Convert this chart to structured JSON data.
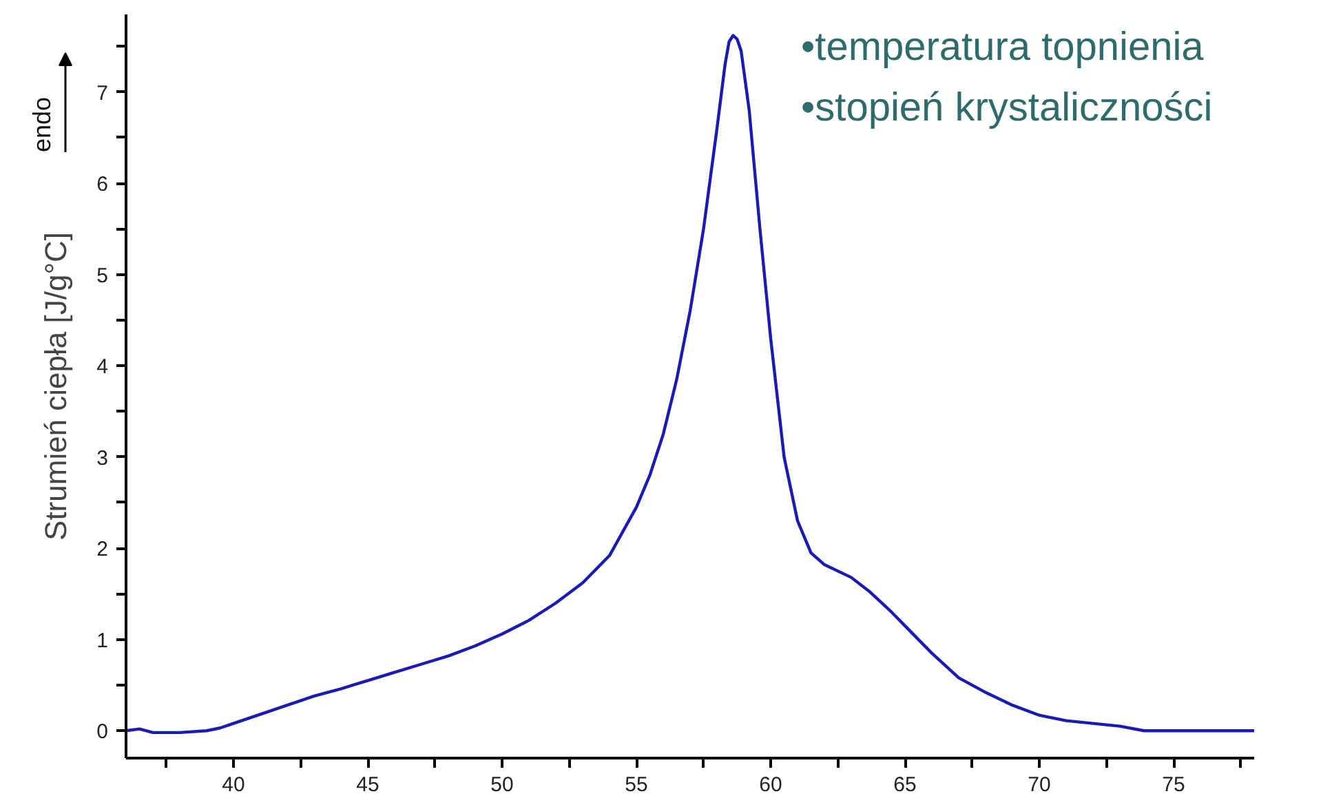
{
  "chart_data": {
    "type": "line",
    "ylabel": "Strumień ciepła [J/g°C]",
    "annotations": [
      "endo",
      "•temperatura topnienia",
      "•stopień krystaliczności"
    ],
    "xlim": [
      36,
      78
    ],
    "ylim": [
      -0.3,
      7.85
    ],
    "xticks": [
      {
        "value": 37.5,
        "label": null
      },
      40,
      {
        "value": 42.5,
        "label": null
      },
      45,
      {
        "value": 47.5,
        "label": null
      },
      50,
      {
        "value": 52.5,
        "label": null
      },
      55,
      {
        "value": 57.5,
        "label": null
      },
      60,
      {
        "value": 62.5,
        "label": null
      },
      65,
      {
        "value": 67.5,
        "label": null
      },
      70,
      {
        "value": 72.5,
        "label": null
      },
      75,
      {
        "value": 77.5,
        "label": null
      }
    ],
    "yticks": [
      0,
      {
        "value": 0.5,
        "label": null
      },
      1,
      {
        "value": 1.5,
        "label": null
      },
      2,
      {
        "value": 2.5,
        "label": null
      },
      3,
      {
        "value": 3.5,
        "label": null
      },
      4,
      {
        "value": 4.5,
        "label": null
      },
      5,
      {
        "value": 5.5,
        "label": null
      },
      6,
      {
        "value": 6.5,
        "label": null
      },
      7,
      {
        "value": 7.5,
        "label": null
      }
    ],
    "grid": false,
    "marker": "none",
    "line_style": "solid",
    "series": [
      {
        "color": "#1a1ab4",
        "x": [
          36,
          36.5,
          37,
          38,
          39,
          39.5,
          40,
          41,
          42,
          43,
          44,
          45,
          46,
          47,
          48,
          49,
          50,
          51,
          52,
          53,
          54,
          55,
          55.5,
          56,
          56.5,
          57,
          57.5,
          58,
          58.3,
          58.45,
          58.6,
          58.75,
          58.9,
          59.2,
          59.6,
          60,
          60.5,
          61,
          61.5,
          62,
          63,
          63.7,
          64.5,
          65,
          66,
          67,
          68,
          69,
          70,
          71,
          72,
          73,
          73.9,
          75,
          78
        ],
        "values": [
          0.0,
          0.02,
          -0.02,
          -0.02,
          0.0,
          0.03,
          0.08,
          0.18,
          0.28,
          0.38,
          0.46,
          0.55,
          0.64,
          0.73,
          0.82,
          0.93,
          1.06,
          1.21,
          1.4,
          1.62,
          1.92,
          2.45,
          2.8,
          3.25,
          3.85,
          4.6,
          5.5,
          6.6,
          7.3,
          7.55,
          7.62,
          7.58,
          7.45,
          6.8,
          5.5,
          4.3,
          3.0,
          2.3,
          1.95,
          1.82,
          1.68,
          1.52,
          1.3,
          1.15,
          0.85,
          0.58,
          0.42,
          0.28,
          0.17,
          0.11,
          0.08,
          0.05,
          0.0,
          0.0,
          0.0
        ]
      }
    ]
  }
}
